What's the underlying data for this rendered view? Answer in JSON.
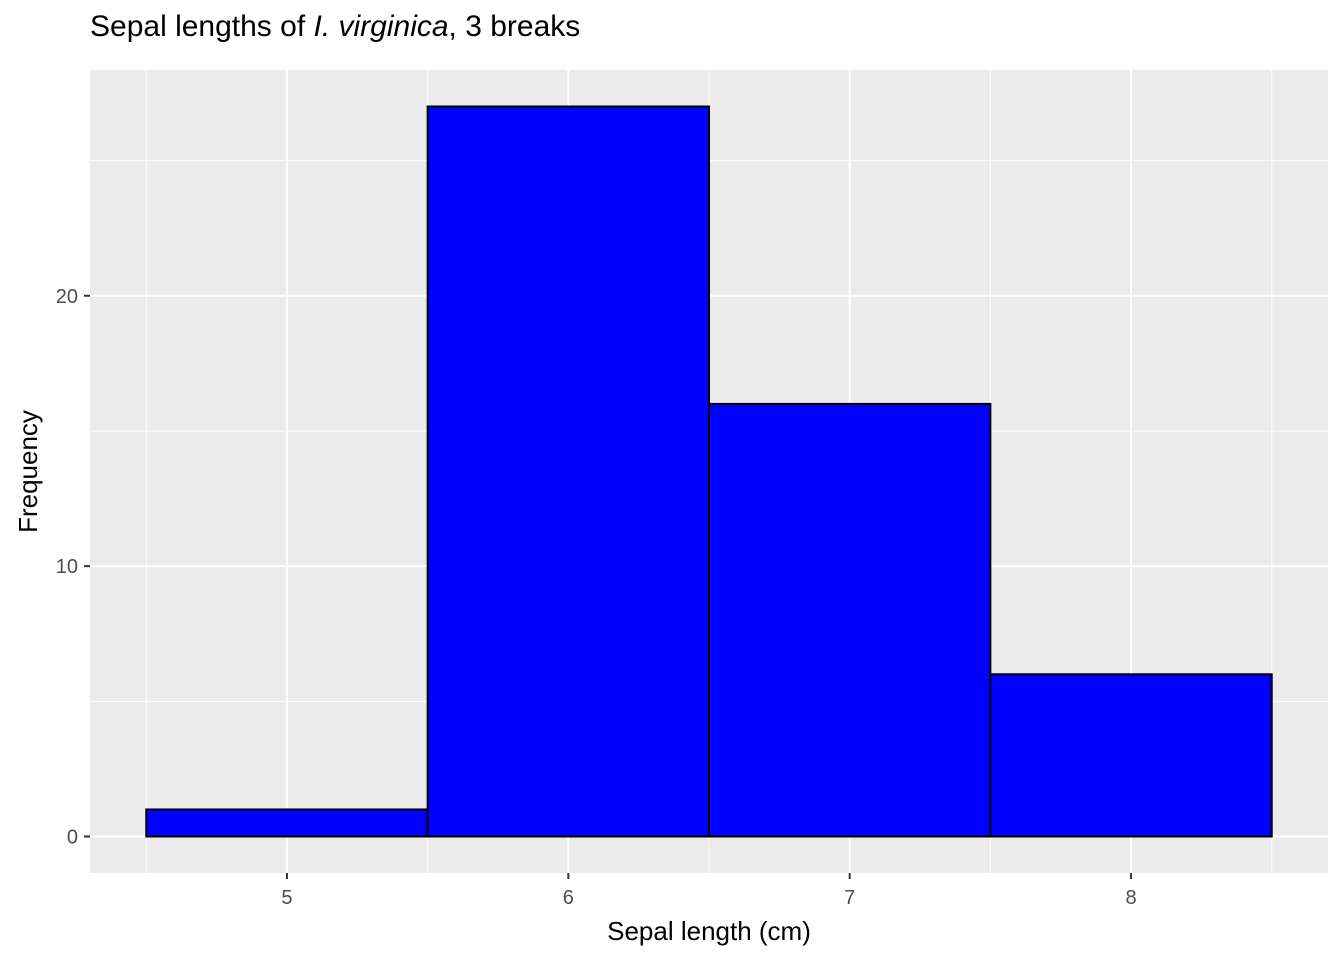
{
  "title": {
    "prefix": "Sepal lengths of ",
    "italic": "I. virginica",
    "suffix": ", 3 breaks"
  },
  "chart_data": {
    "type": "bar",
    "subtype": "histogram",
    "bins": [
      {
        "x0": 4.5,
        "x1": 5.5,
        "count": 1
      },
      {
        "x0": 5.5,
        "x1": 6.5,
        "count": 27
      },
      {
        "x0": 6.5,
        "x1": 7.5,
        "count": 16
      },
      {
        "x0": 7.5,
        "x1": 8.5,
        "count": 6
      }
    ],
    "xlabel": "Sepal length (cm)",
    "ylabel": "Frequency",
    "xlim": [
      4.3,
      8.7
    ],
    "ylim": [
      -1.35,
      28.35
    ],
    "xticks": [
      5,
      6,
      7,
      8
    ],
    "yticks": [
      0,
      10,
      20
    ],
    "grid": true,
    "bar_fill": "#0000ff",
    "bar_stroke": "#000000",
    "panel_background": "#ebebeb",
    "grid_color": "#ffffff"
  }
}
